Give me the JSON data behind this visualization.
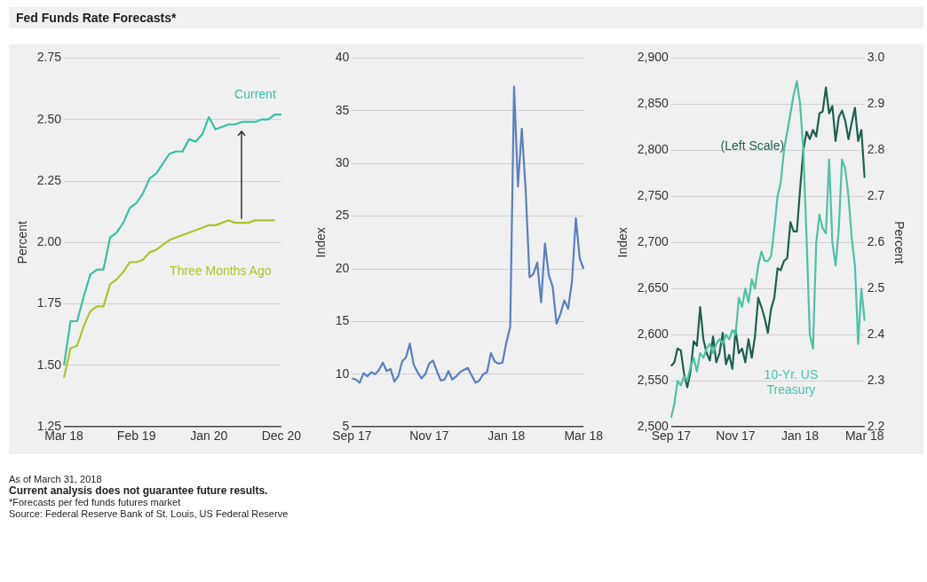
{
  "chart_data": [
    {
      "type": "line",
      "title": "Fed Funds Rate Forecasts*",
      "ylabel": "Percent",
      "grid": "y",
      "legend": false,
      "marker": "none",
      "annotations": [
        "As of March 31, 2018",
        "Current analysis does not guarantee future results.",
        "*Forecasts per fed funds futures market",
        "Source: Federal Reserve Bank of St. Louis, US Federal Reserve"
      ],
      "categories": [
        "Mar 18",
        null,
        null,
        null,
        null,
        null,
        null,
        null,
        null,
        null,
        null,
        "Feb 19",
        null,
        null,
        null,
        null,
        null,
        null,
        null,
        null,
        null,
        null,
        "Jan 20",
        null,
        null,
        null,
        null,
        null,
        null,
        null,
        null,
        null,
        null,
        "Dec 20"
      ],
      "ylim": [
        1.25,
        2.75
      ],
      "yticks": [
        {
          "value": 1.25,
          "label": "1.25"
        },
        {
          "value": 1.5,
          "label": "1.50"
        },
        {
          "value": 1.75,
          "label": "1.75"
        },
        {
          "value": 2,
          "label": "2.00"
        },
        {
          "value": 2.25,
          "label": "2.25"
        },
        {
          "value": 2.5,
          "label": "2.50"
        },
        {
          "value": 2.75,
          "label": "2.75"
        }
      ],
      "series": [
        {
          "name": "Current",
          "color": "#3dbfa6",
          "values": [
            1.5,
            1.68,
            1.68,
            1.78,
            1.87,
            1.89,
            1.89,
            2.02,
            2.04,
            2.08,
            2.14,
            2.16,
            2.2,
            2.26,
            2.28,
            2.32,
            2.36,
            2.37,
            2.37,
            2.42,
            2.41,
            2.44,
            2.51,
            2.46,
            2.47,
            2.48,
            2.48,
            2.49,
            2.49,
            2.49,
            2.5,
            2.5,
            2.52,
            2.52
          ]
        },
        {
          "name": "Three Months Ago",
          "color": "#a8c630",
          "values": [
            1.45,
            1.57,
            1.58,
            1.66,
            1.72,
            1.74,
            1.74,
            1.83,
            1.85,
            1.88,
            1.92,
            1.92,
            1.93,
            1.96,
            1.97,
            1.99,
            2.01,
            2.02,
            2.03,
            2.04,
            2.05,
            2.06,
            2.07,
            2.07,
            2.08,
            2.09,
            2.08,
            2.08,
            2.08,
            2.09,
            2.09,
            2.09,
            2.09,
            null
          ]
        }
      ]
    },
    {
      "type": "line",
      "ylabel": "Index",
      "grid": "y",
      "legend": false,
      "marker": "none",
      "categories": [
        "Sep 17",
        null,
        null,
        null,
        null,
        null,
        null,
        null,
        null,
        null,
        null,
        null,
        null,
        null,
        null,
        null,
        null,
        null,
        null,
        null,
        "Nov 17",
        null,
        null,
        null,
        null,
        null,
        null,
        null,
        null,
        null,
        null,
        null,
        null,
        null,
        null,
        null,
        null,
        null,
        null,
        null,
        "Jan 18",
        null,
        null,
        null,
        null,
        null,
        null,
        null,
        null,
        null,
        null,
        null,
        null,
        null,
        null,
        null,
        null,
        null,
        null,
        null,
        "Mar 18"
      ],
      "ylim": [
        5,
        40
      ],
      "yticks": [
        5,
        10,
        15,
        20,
        25,
        30,
        35,
        40
      ],
      "series": [
        {
          "color": "#5b7fbf",
          "values": [
            9.6,
            9.5,
            9.2,
            10.1,
            9.8,
            10.2,
            10,
            10.4,
            11.1,
            10.3,
            10.5,
            9.3,
            9.8,
            11.2,
            11.6,
            12.9,
            10.9,
            10.2,
            9.6,
            10,
            11,
            11.3,
            10.3,
            9.4,
            9.5,
            10.3,
            9.5,
            9.8,
            10.2,
            10.4,
            10.6,
            9.9,
            9.2,
            9.4,
            10,
            10.2,
            12,
            11.2,
            11,
            11.1,
            13,
            14.5,
            37.3,
            27.8,
            33.3,
            27.5,
            19.2,
            19.5,
            20.6,
            16.8,
            22.4,
            19.4,
            18.3,
            14.8,
            15.7,
            17,
            16.2,
            18.8,
            24.8,
            21,
            20
          ]
        }
      ]
    },
    {
      "type": "line",
      "ylabel": "Index",
      "y2label": "Percent",
      "grid": "y",
      "legend": false,
      "marker": "none",
      "categories": [
        "Sep 17",
        null,
        null,
        null,
        null,
        null,
        null,
        null,
        null,
        null,
        null,
        null,
        null,
        null,
        null,
        null,
        null,
        null,
        null,
        null,
        "Nov 17",
        null,
        null,
        null,
        null,
        null,
        null,
        null,
        null,
        null,
        null,
        null,
        null,
        null,
        null,
        null,
        null,
        null,
        null,
        null,
        "Jan 18",
        null,
        null,
        null,
        null,
        null,
        null,
        null,
        null,
        null,
        null,
        null,
        null,
        null,
        null,
        null,
        null,
        null,
        null,
        null,
        "Mar 18"
      ],
      "ylim": [
        2500,
        2900
      ],
      "yticks": [
        {
          "value": 2500,
          "label": "2,500"
        },
        {
          "value": 2550,
          "label": "2,550"
        },
        {
          "value": 2600,
          "label": "2,600"
        },
        {
          "value": 2650,
          "label": "2,650"
        },
        {
          "value": 2700,
          "label": "2,700"
        },
        {
          "value": 2750,
          "label": "2,750"
        },
        {
          "value": 2800,
          "label": "2,800"
        },
        {
          "value": 2850,
          "label": "2,850"
        },
        {
          "value": 2900,
          "label": "2,900"
        }
      ],
      "y2lim": [
        2.2,
        3.0
      ],
      "y2ticks": [
        2.2,
        2.3,
        2.4,
        2.5,
        2.6,
        2.7,
        2.8,
        2.9,
        {
          "value": 3,
          "label": "3.0"
        }
      ],
      "series": [
        {
          "name": "10-Yr. US Treasury",
          "color": "#4cc2a6",
          "axis": "y2",
          "values": [
            2.22,
            2.25,
            2.3,
            2.29,
            2.31,
            2.3,
            2.33,
            2.35,
            2.32,
            2.36,
            2.35,
            2.37,
            2.38,
            2.36,
            2.38,
            2.39,
            2.38,
            2.4,
            2.39,
            2.41,
            2.4,
            2.48,
            2.46,
            2.5,
            2.47,
            2.52,
            2.5,
            2.55,
            2.58,
            2.56,
            2.56,
            2.57,
            2.63,
            2.7,
            2.73,
            2.8,
            2.84,
            2.88,
            2.92,
            2.95,
            2.9,
            2.8,
            2.61,
            2.4,
            2.37,
            2.6,
            2.66,
            2.63,
            2.62,
            2.78,
            2.6,
            2.55,
            2.63,
            2.78,
            2.76,
            2.7,
            2.61,
            2.55,
            2.38,
            2.5,
            2.43
          ]
        },
        {
          "name": "(Left Scale)",
          "color": "#1e5f50",
          "values": [
            2566,
            2570,
            2585,
            2583,
            2558,
            2543,
            2560,
            2593,
            2588,
            2630,
            2595,
            2580,
            2572,
            2598,
            2570,
            2580,
            2602,
            2568,
            2578,
            2563,
            2605,
            2580,
            2585,
            2570,
            2595,
            2575,
            2598,
            2640,
            2630,
            2618,
            2602,
            2628,
            2640,
            2672,
            2670,
            2680,
            2683,
            2722,
            2712,
            2712,
            2758,
            2800,
            2820,
            2812,
            2822,
            2815,
            2840,
            2842,
            2868,
            2840,
            2848,
            2810,
            2836,
            2843,
            2832,
            2812,
            2830,
            2846,
            2810,
            2822,
            2770
          ]
        }
      ]
    }
  ]
}
